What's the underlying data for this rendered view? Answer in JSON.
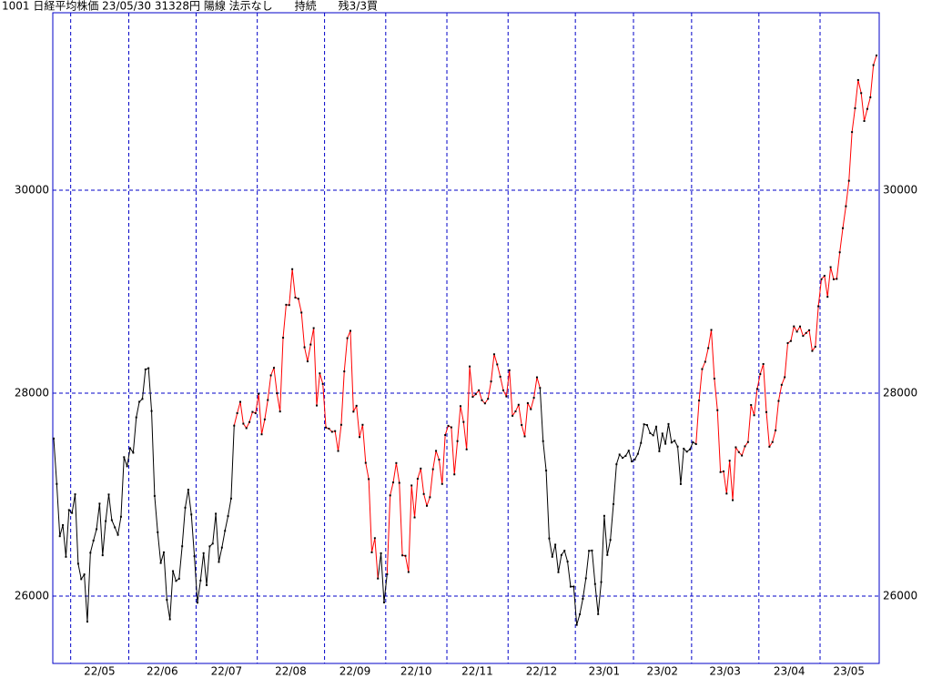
{
  "chart_data": {
    "type": "line",
    "title": "1001 日経平均株価 23/05/30 31328円 陽線 法示なし　　持続　　残3/3買",
    "categories": [
      null,
      null,
      null,
      null,
      null,
      null,
      "22/05",
      "22/05",
      "22/05",
      "22/05",
      "22/05",
      "22/05",
      "22/05",
      "22/05",
      "22/05",
      "22/05",
      "22/05",
      "22/05",
      "22/05",
      "22/05",
      "22/05",
      "22/05",
      "22/05",
      "22/05",
      "22/05",
      "22/06",
      "22/06",
      "22/06",
      "22/06",
      "22/06",
      "22/06",
      "22/06",
      "22/06",
      "22/06",
      "22/06",
      "22/06",
      "22/06",
      "22/06",
      "22/06",
      "22/06",
      "22/06",
      "22/06",
      "22/06",
      "22/06",
      "22/06",
      "22/06",
      "22/06",
      "22/07",
      "22/07",
      "22/07",
      "22/07",
      "22/07",
      "22/07",
      "22/07",
      "22/07",
      "22/07",
      "22/07",
      "22/07",
      "22/07",
      "22/07",
      "22/07",
      "22/07",
      "22/07",
      "22/07",
      "22/07",
      "22/07",
      "22/07",
      "22/08",
      "22/08",
      "22/08",
      "22/08",
      "22/08",
      "22/08",
      "22/08",
      "22/08",
      "22/08",
      "22/08",
      "22/08",
      "22/08",
      "22/08",
      "22/08",
      "22/08",
      "22/08",
      "22/08",
      "22/08",
      "22/08",
      "22/08",
      "22/08",
      "22/08",
      "22/09",
      "22/09",
      "22/09",
      "22/09",
      "22/09",
      "22/09",
      "22/09",
      "22/09",
      "22/09",
      "22/09",
      "22/09",
      "22/09",
      "22/09",
      "22/09",
      "22/09",
      "22/09",
      "22/09",
      "22/09",
      "22/09",
      "22/09",
      "22/10",
      "22/10",
      "22/10",
      "22/10",
      "22/10",
      "22/10",
      "22/10",
      "22/10",
      "22/10",
      "22/10",
      "22/10",
      "22/10",
      "22/10",
      "22/10",
      "22/10",
      "22/10",
      "22/10",
      "22/10",
      "22/10",
      "22/10",
      "22/11",
      "22/11",
      "22/11",
      "22/11",
      "22/11",
      "22/11",
      "22/11",
      "22/11",
      "22/11",
      "22/11",
      "22/11",
      "22/11",
      "22/11",
      "22/11",
      "22/11",
      "22/11",
      "22/11",
      "22/11",
      "22/11",
      "22/11",
      "22/12",
      "22/12",
      "22/12",
      "22/12",
      "22/12",
      "22/12",
      "22/12",
      "22/12",
      "22/12",
      "22/12",
      "22/12",
      "22/12",
      "22/12",
      "22/12",
      "22/12",
      "22/12",
      "22/12",
      "22/12",
      "22/12",
      "22/12",
      "22/12",
      "22/12",
      "23/01",
      "23/01",
      "23/01",
      "23/01",
      "23/01",
      "23/01",
      "23/01",
      "23/01",
      "23/01",
      "23/01",
      "23/01",
      "23/01",
      "23/01",
      "23/01",
      "23/01",
      "23/01",
      "23/01",
      "23/01",
      "23/01",
      "23/02",
      "23/02",
      "23/02",
      "23/02",
      "23/02",
      "23/02",
      "23/02",
      "23/02",
      "23/02",
      "23/02",
      "23/02",
      "23/02",
      "23/02",
      "23/02",
      "23/02",
      "23/02",
      "23/02",
      "23/02",
      "23/02",
      "23/03",
      "23/03",
      "23/03",
      "23/03",
      "23/03",
      "23/03",
      "23/03",
      "23/03",
      "23/03",
      "23/03",
      "23/03",
      "23/03",
      "23/03",
      "23/03",
      "23/03",
      "23/03",
      "23/03",
      "23/03",
      "23/03",
      "23/03",
      "23/03",
      "23/03",
      "23/04",
      "23/04",
      "23/04",
      "23/04",
      "23/04",
      "23/04",
      "23/04",
      "23/04",
      "23/04",
      "23/04",
      "23/04",
      "23/04",
      "23/04",
      "23/04",
      "23/04",
      "23/04",
      "23/04",
      "23/04",
      "23/04",
      "23/04",
      "23/05",
      "23/05",
      "23/05",
      "23/05",
      "23/05",
      "23/05",
      "23/05",
      "23/05",
      "23/05",
      "23/05",
      "23/05",
      "23/05",
      "23/05",
      "23/05",
      "23/05",
      "23/05",
      "23/05",
      "23/05",
      "23/05"
    ],
    "series": [
      {
        "color": "#000000",
        "values": [
          27553,
          27105,
          26590,
          26700,
          26387,
          26848,
          26819,
          27003,
          26319,
          26167,
          26213,
          25748,
          26427,
          26547,
          26659,
          26911,
          26402,
          26739,
          27001,
          26748,
          26677,
          26604,
          26782,
          27369,
          27279,
          27457,
          27413,
          27761,
          27915,
          27943,
          28234,
          28246,
          27824,
          26987,
          26629,
          26326,
          26431,
          25963,
          25771,
          26246,
          26149,
          26171,
          26491,
          26871,
          27049,
          26804,
          26393,
          25935,
          26153,
          26423,
          26107,
          26490,
          26517,
          26812,
          26336,
          26478,
          26643,
          26788,
          26961,
          27680,
          null,
          null,
          null,
          null,
          null,
          null,
          null,
          null,
          null,
          null,
          null,
          null,
          null,
          null,
          null,
          null,
          null,
          null,
          null,
          null,
          null,
          null,
          null,
          null,
          null,
          null,
          null,
          null,
          null,
          null,
          null,
          null,
          null,
          null,
          null,
          null,
          null,
          null,
          null,
          null,
          null,
          null,
          null,
          null,
          null,
          null,
          26173,
          26422,
          25937,
          26215,
          null,
          null,
          null,
          null,
          null,
          null,
          null,
          null,
          null,
          null,
          null,
          null,
          null,
          null,
          null,
          null,
          null,
          null,
          null,
          null,
          null,
          null,
          null,
          null,
          null,
          null,
          null,
          null,
          null,
          null,
          null,
          null,
          null,
          null,
          null,
          null,
          null,
          null,
          null,
          null,
          null,
          null,
          null,
          null,
          null,
          null,
          null,
          null,
          null,
          28051,
          27527,
          27237,
          26568,
          26387,
          26507,
          26235,
          26405,
          26447,
          26340,
          26093,
          26094,
          25716,
          25820,
          25973,
          26175,
          26446,
          26449,
          26119,
          25822,
          26138,
          26791,
          26405,
          26553,
          26906,
          27299,
          27395,
          27362,
          27382,
          27433,
          27327,
          27346,
          27402,
          27509,
          27693,
          27685,
          27606,
          27584,
          27670,
          27427,
          27602,
          27501,
          27696,
          27513,
          27531,
          27473,
          27104,
          27453,
          27423,
          27445,
          27516,
          27498,
          null,
          null,
          null,
          null,
          null,
          null,
          null,
          null,
          null,
          null,
          null,
          null,
          null,
          null,
          null,
          null,
          null,
          null,
          null,
          null,
          null,
          null,
          null,
          null,
          null,
          null,
          null,
          null,
          null,
          null,
          null,
          null,
          null,
          null,
          null,
          null,
          null,
          null,
          null,
          null,
          null,
          null,
          null,
          null,
          null,
          null,
          null,
          null,
          null,
          null,
          null,
          null,
          null,
          null,
          null,
          null,
          null,
          null,
          null
        ]
      },
      {
        "color": "#ff0000",
        "values": [
          null,
          null,
          null,
          null,
          null,
          null,
          null,
          null,
          null,
          null,
          null,
          null,
          null,
          null,
          null,
          null,
          null,
          null,
          null,
          null,
          null,
          null,
          null,
          null,
          null,
          null,
          null,
          null,
          null,
          null,
          null,
          null,
          null,
          null,
          null,
          null,
          null,
          null,
          null,
          null,
          null,
          null,
          null,
          null,
          null,
          null,
          null,
          null,
          null,
          null,
          null,
          null,
          null,
          null,
          null,
          null,
          null,
          null,
          null,
          27680,
          27803,
          27914,
          27699,
          27655,
          27715,
          27815,
          27802,
          27993,
          27594,
          27741,
          27932,
          28175,
          28249,
          27999,
          27819,
          28546,
          28871,
          28868,
          29222,
          28942,
          28930,
          28794,
          28452,
          28313,
          28479,
          28641,
          27878,
          28195,
          28091,
          27661,
          27650,
          27619,
          27626,
          27430,
          27688,
          28214,
          28542,
          28614,
          27818,
          27875,
          27567,
          27688,
          27313,
          27153,
          26431,
          26571,
          26173,
          null,
          null,
          26215,
          26992,
          27120,
          27311,
          27116,
          26401,
          26397,
          26237,
          27090,
          26775,
          27156,
          27257,
          27006,
          26890,
          26974,
          27250,
          27431,
          27345,
          27105,
          27587,
          27678,
          27663,
          27199,
          27527,
          27872,
          27716,
          27446,
          28263,
          27963,
          27990,
          28028,
          27930,
          27899,
          27944,
          28115,
          28383,
          28283,
          28162,
          28027,
          27968,
          28226,
          27777,
          27820,
          27885,
          27686,
          27574,
          27901,
          27842,
          27954,
          28156,
          28051,
          null,
          null,
          null,
          null,
          null,
          null,
          null,
          null,
          null,
          null,
          null,
          null,
          null,
          null,
          null,
          null,
          null,
          null,
          null,
          null,
          null,
          null,
          null,
          null,
          null,
          null,
          null,
          null,
          null,
          null,
          null,
          null,
          null,
          null,
          null,
          null,
          null,
          null,
          null,
          null,
          null,
          null,
          null,
          null,
          null,
          null,
          null,
          null,
          null,
          null,
          27498,
          27927,
          28237,
          28309,
          28444,
          28623,
          28143,
          27832,
          27222,
          27229,
          27010,
          27334,
          26945,
          27466,
          27419,
          27385,
          27476,
          27518,
          27883,
          27782,
          28041,
          28188,
          28287,
          27813,
          27472,
          27518,
          27633,
          27923,
          28082,
          28157,
          28493,
          28514,
          28658,
          28606,
          28657,
          28564,
          28593,
          28620,
          28416,
          28457,
          28856,
          29123,
          29157,
          28949,
          29242,
          29122,
          29126,
          29388,
          29626,
          29842,
          30093,
          30573,
          30808,
          31086,
          30957,
          30682,
          30801,
          30916,
          31233,
          31328
        ]
      }
    ],
    "ylim": [
      25336,
      31749
    ],
    "yticks": [
      26000,
      28000,
      30000
    ],
    "grid": true,
    "grid_color": "#0000c8",
    "marker_color": "#000000"
  }
}
